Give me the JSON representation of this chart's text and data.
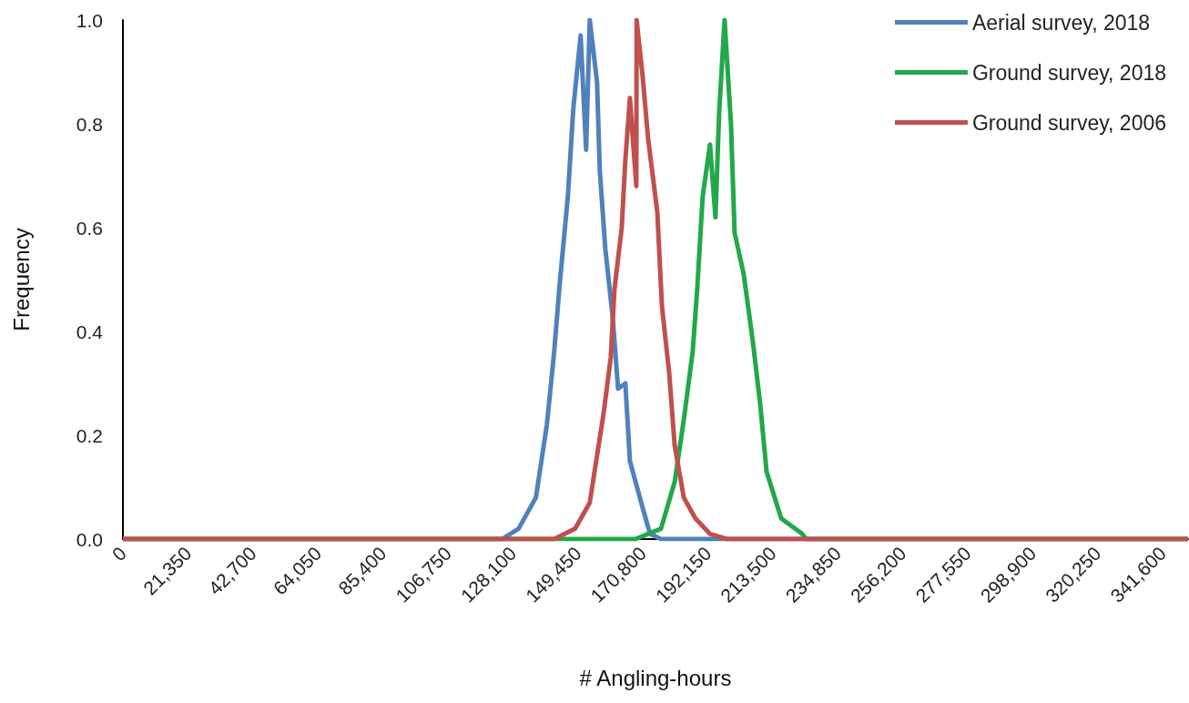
{
  "chart_data": {
    "type": "line",
    "xlabel": "# Angling-hours",
    "ylabel": "Frequency",
    "xlim": [
      0,
      350000
    ],
    "xticks": [
      0,
      {
        "value": 21350,
        "label": "21,350"
      },
      {
        "value": 42700,
        "label": "42,700"
      },
      {
        "value": 64050,
        "label": "64,050"
      },
      {
        "value": 85400,
        "label": "85,400"
      },
      {
        "value": 106750,
        "label": "106,750"
      },
      {
        "value": 128100,
        "label": "128,100"
      },
      {
        "value": 149450,
        "label": "149,450"
      },
      {
        "value": 170800,
        "label": "170,800"
      },
      {
        "value": 192150,
        "label": "192,150"
      },
      {
        "value": 213500,
        "label": "213,500"
      },
      {
        "value": 234850,
        "label": "234,850"
      },
      {
        "value": 256200,
        "label": "256,200"
      },
      {
        "value": 277550,
        "label": "277,550"
      },
      {
        "value": 298900,
        "label": "298,900"
      },
      {
        "value": 320250,
        "label": "320,250"
      },
      {
        "value": 341600,
        "label": "341,600"
      }
    ],
    "ylim": [
      0,
      1
    ],
    "yticks": [
      {
        "value": 0,
        "label": "0.0"
      },
      {
        "value": 0.2,
        "label": "0.2"
      },
      {
        "value": 0.4,
        "label": "0.4"
      },
      {
        "value": 0.6,
        "label": "0.6"
      },
      {
        "value": 0.8,
        "label": "0.8"
      },
      {
        "value": 1,
        "label": "1.0"
      }
    ],
    "grid": false,
    "legend": "top right",
    "series": [
      {
        "name": "Aerial survey, 2018",
        "color": "#4f81bd",
        "x": [
          0,
          124600,
          130000,
          135700,
          139300,
          141700,
          143500,
          146200,
          148000,
          150400,
          152200,
          153400,
          155800,
          156700,
          158500,
          160900,
          162700,
          165100,
          166600,
          170800,
          173200,
          176800,
          188100,
          350000
        ],
        "values": [
          0,
          0,
          0.02,
          0.08,
          0.22,
          0.36,
          0.49,
          0.66,
          0.83,
          0.97,
          0.75,
          1.0,
          0.88,
          0.71,
          0.56,
          0.43,
          0.29,
          0.3,
          0.15,
          0.06,
          0.01,
          0,
          0,
          0
        ]
      },
      {
        "name": "Ground survey, 2018",
        "color": "#22a84a",
        "x": [
          0,
          168400,
          176800,
          181300,
          184300,
          187200,
          188700,
          190500,
          192900,
          194700,
          195900,
          197700,
          199800,
          201000,
          204000,
          207000,
          209400,
          211500,
          216300,
          223200,
          224400,
          350000
        ],
        "values": [
          0,
          0,
          0.02,
          0.11,
          0.23,
          0.36,
          0.48,
          0.66,
          0.76,
          0.62,
          0.82,
          1.0,
          0.8,
          0.59,
          0.51,
          0.38,
          0.26,
          0.13,
          0.04,
          0.01,
          0,
          0
        ]
      },
      {
        "name": "Ground survey, 2006",
        "color": "#c0504d",
        "x": [
          0,
          141700,
          148600,
          153400,
          155500,
          157900,
          160300,
          161500,
          163900,
          165100,
          166600,
          168700,
          168800,
          170800,
          172600,
          175600,
          177100,
          179500,
          181300,
          184300,
          188100,
          192900,
          198600,
          350000
        ],
        "values": [
          0,
          0,
          0.02,
          0.07,
          0.15,
          0.24,
          0.35,
          0.48,
          0.6,
          0.73,
          0.85,
          0.68,
          1.0,
          0.89,
          0.77,
          0.63,
          0.45,
          0.32,
          0.18,
          0.08,
          0.04,
          0.01,
          0,
          0
        ]
      }
    ]
  }
}
